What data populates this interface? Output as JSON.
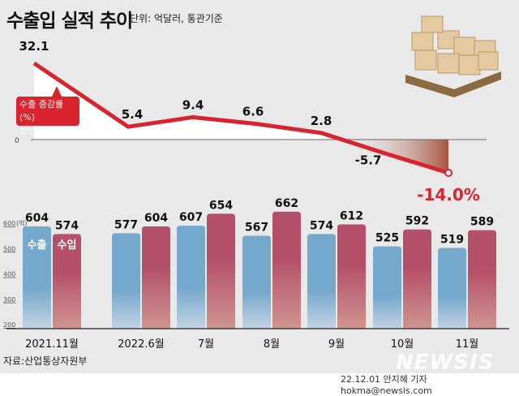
{
  "header": {
    "title": "수출입 실적 추이",
    "unit_note": "단위: 억달러, 통관기준"
  },
  "callout": {
    "line1": "수출 증감률(%)",
    "line2": "전년동월대비"
  },
  "footer": {
    "source": "자료:산업통상자원부",
    "credit": "22.12.01 안지혜 기자 hokma@newsis.com",
    "logo": "NEWSIS"
  },
  "colors": {
    "line": "#d9232e",
    "export": "#74a8cc",
    "import": "#b5506a",
    "negative_fill": "#b5604e"
  },
  "chart_data": [
    {
      "type": "line",
      "categories": [
        "2021.11월",
        "2022.6월",
        "7월",
        "8월",
        "9월",
        "10월",
        "11월"
      ],
      "series": [
        {
          "name": "수출 증감률(%) 전년동월대비",
          "values": [
            32.1,
            5.4,
            9.4,
            6.6,
            2.8,
            -5.7,
            -14.0
          ]
        }
      ],
      "labels": [
        "32.1",
        "5.4",
        "9.4",
        "6.6",
        "2.8",
        "-5.7",
        "-14.0%"
      ],
      "zero_label": "0"
    },
    {
      "type": "bar",
      "categories": [
        "2021.11월",
        "2022.6월",
        "7월",
        "8월",
        "9월",
        "10월",
        "11월"
      ],
      "series": [
        {
          "name": "수출",
          "values": [
            604,
            577,
            607,
            567,
            574,
            525,
            519
          ]
        },
        {
          "name": "수입",
          "values": [
            574,
            604,
            654,
            662,
            612,
            592,
            589
          ]
        }
      ],
      "ylim": [
        200,
        700
      ],
      "yticks": [
        "200",
        "300",
        "400",
        "500",
        "600"
      ],
      "yunit": "(억)",
      "legend_placement": "inside-first-bars"
    }
  ]
}
